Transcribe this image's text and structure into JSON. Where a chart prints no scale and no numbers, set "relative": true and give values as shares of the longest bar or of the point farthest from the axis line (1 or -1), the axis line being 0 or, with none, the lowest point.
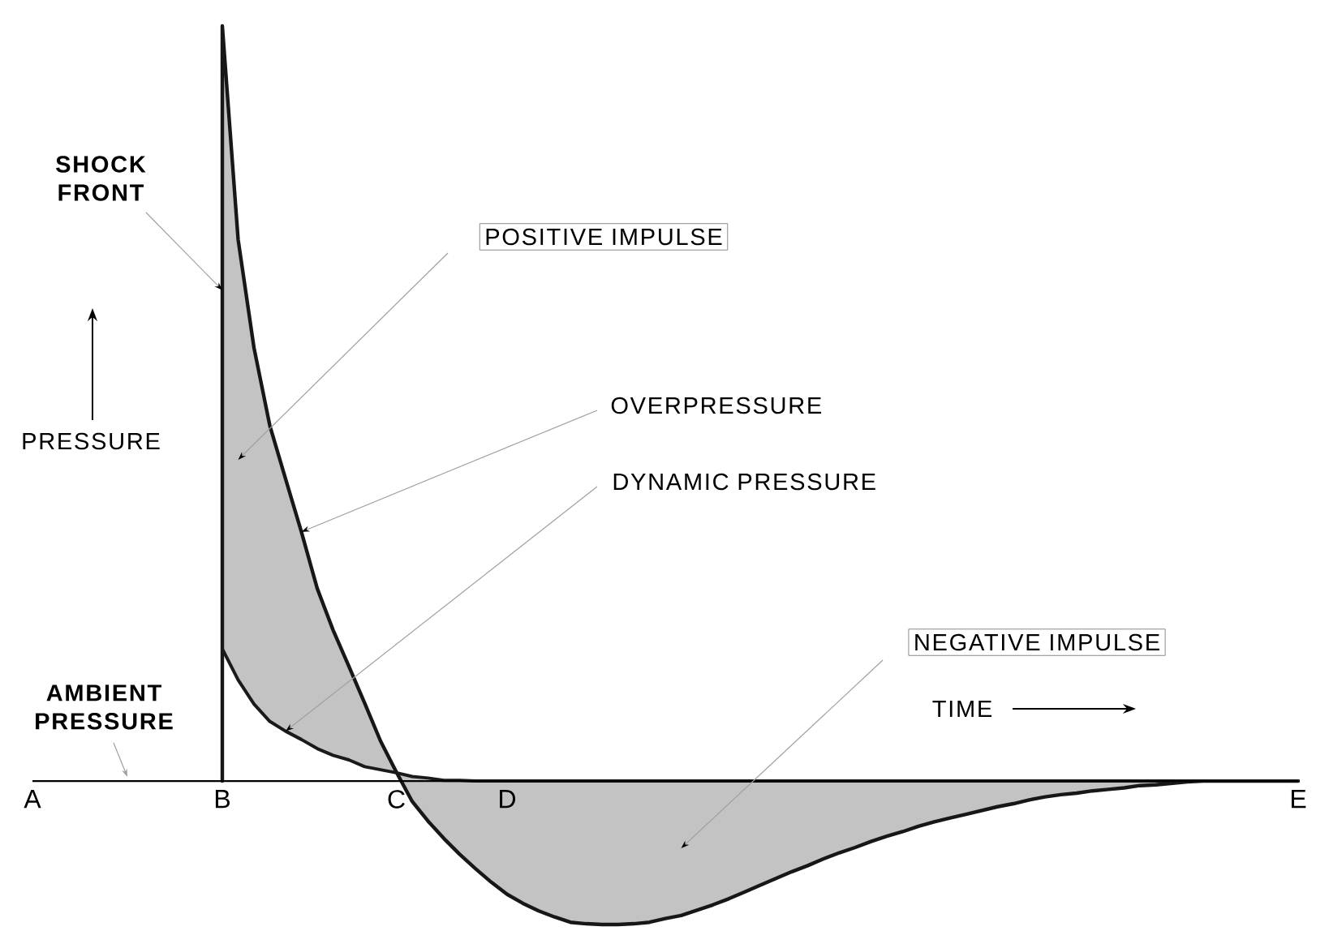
{
  "chart_data": {
    "type": "line",
    "relative": true,
    "xlabel": "TIME",
    "ylabel": "PRESSURE",
    "categories": [
      "A",
      null,
      null,
      null,
      null,
      null,
      null,
      null,
      null,
      null,
      null,
      null,
      "B",
      null,
      null,
      null,
      null,
      null,
      null,
      null,
      null,
      null,
      null,
      "C",
      null,
      null,
      null,
      null,
      null,
      null,
      "D",
      null,
      null,
      null,
      null,
      null,
      null,
      null,
      null,
      null,
      null,
      null,
      null,
      null,
      null,
      null,
      null,
      null,
      null,
      null,
      null,
      null,
      null,
      null,
      null,
      null,
      null,
      null,
      null,
      null,
      null,
      null,
      null,
      null,
      null,
      null,
      null,
      null,
      null,
      null,
      null,
      null,
      null,
      null,
      null,
      null,
      null,
      null,
      null,
      null,
      "E"
    ],
    "series": [
      {
        "name": "OVERPRESSURE",
        "type": "area",
        "color": "#c3c3c3",
        "values": [
          null,
          null,
          null,
          null,
          null,
          null,
          null,
          null,
          null,
          null,
          null,
          null,
          1,
          0.717,
          0.574,
          0.471,
          0.4,
          0.33,
          0.255,
          0.2,
          0.152,
          0.103,
          0.053,
          0.012,
          -0.027,
          -0.053,
          -0.076,
          -0.097,
          -0.116,
          -0.134,
          -0.15,
          -0.162,
          -0.172,
          -0.18,
          -0.187,
          -0.189,
          -0.19,
          -0.19,
          -0.189,
          -0.187,
          -0.182,
          -0.178,
          -0.171,
          -0.164,
          -0.156,
          -0.147,
          -0.138,
          -0.129,
          -0.12,
          -0.112,
          -0.103,
          -0.095,
          -0.088,
          -0.08,
          -0.073,
          -0.067,
          -0.06,
          -0.054,
          -0.049,
          -0.044,
          -0.039,
          -0.034,
          -0.03,
          -0.025,
          -0.021,
          -0.018,
          -0.016,
          -0.013,
          -0.011,
          -0.009,
          -0.006,
          -0.005,
          -0.003,
          -0.001,
          0,
          0,
          0,
          0,
          0,
          0,
          0
        ]
      },
      {
        "name": "DYNAMIC PRESSURE",
        "color": "#1a1a1a",
        "values": [
          null,
          null,
          null,
          null,
          null,
          null,
          null,
          null,
          null,
          null,
          null,
          null,
          0.175,
          0.134,
          0.102,
          0.079,
          0.066,
          0.055,
          0.043,
          0.034,
          0.028,
          0.019,
          0.015,
          0.011,
          0.006,
          0.004,
          0.001,
          0.001,
          0,
          0,
          0,
          0,
          0,
          0,
          0,
          0,
          0,
          0,
          0,
          0,
          0,
          0,
          0,
          0,
          0,
          0,
          0,
          0,
          0,
          0,
          0,
          0,
          0,
          0,
          0,
          0,
          0,
          0,
          0,
          0,
          0,
          0,
          0,
          0,
          0,
          0,
          0,
          0,
          0,
          0,
          0,
          0,
          0,
          0,
          0,
          0,
          0,
          0,
          0,
          0,
          0
        ]
      }
    ],
    "annotations": [
      {
        "text": "SHOCK FRONT",
        "x": "B",
        "y": 0.65
      },
      "POSITIVE IMPULSE",
      "NEGATIVE IMPULSE",
      "AMBIENT PRESSURE"
    ]
  }
}
